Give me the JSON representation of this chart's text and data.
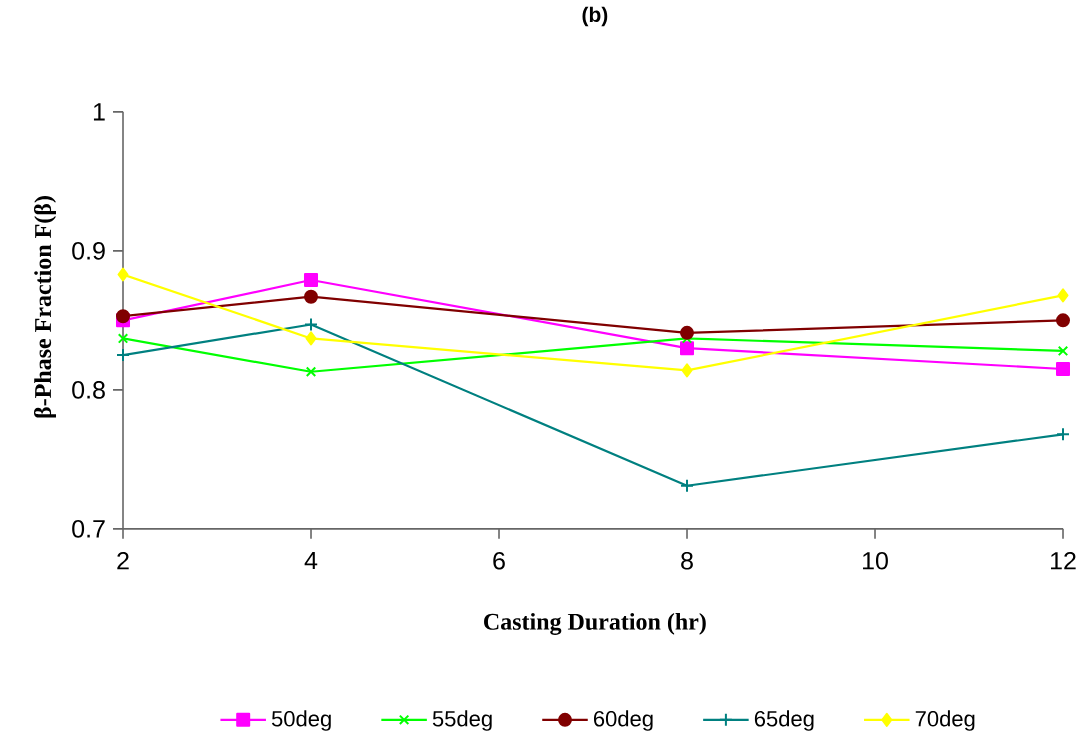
{
  "chart_data": {
    "type": "line",
    "title": "(b)",
    "xlabel": "Casting Duration (hr)",
    "ylabel": "β-Phase Fraction F(β)",
    "x": [
      2,
      4,
      8,
      12
    ],
    "xlim": [
      2,
      12
    ],
    "xticks": [
      2,
      4,
      6,
      8,
      10,
      12
    ],
    "ylim": [
      0.7,
      1
    ],
    "yticks": [
      0.7,
      0.8,
      0.9,
      1
    ],
    "grid": false,
    "legend": "bottom",
    "series": [
      {
        "name": "50deg",
        "color": "#ff00ff",
        "marker": "square",
        "values": [
          0.85,
          0.879,
          0.83,
          0.815
        ]
      },
      {
        "name": "55deg",
        "color": "#00ff00",
        "marker": "cross",
        "values": [
          0.837,
          0.813,
          0.837,
          0.828
        ]
      },
      {
        "name": "60deg",
        "color": "#800000",
        "marker": "circle",
        "values": [
          0.853,
          0.867,
          0.841,
          0.85
        ]
      },
      {
        "name": "65deg",
        "color": "#008080",
        "marker": "plus",
        "values": [
          0.825,
          0.847,
          0.731,
          0.768
        ]
      },
      {
        "name": "70deg",
        "color": "#ffff00",
        "marker": "diamond",
        "values": [
          0.883,
          0.837,
          0.814,
          0.868
        ]
      }
    ]
  }
}
